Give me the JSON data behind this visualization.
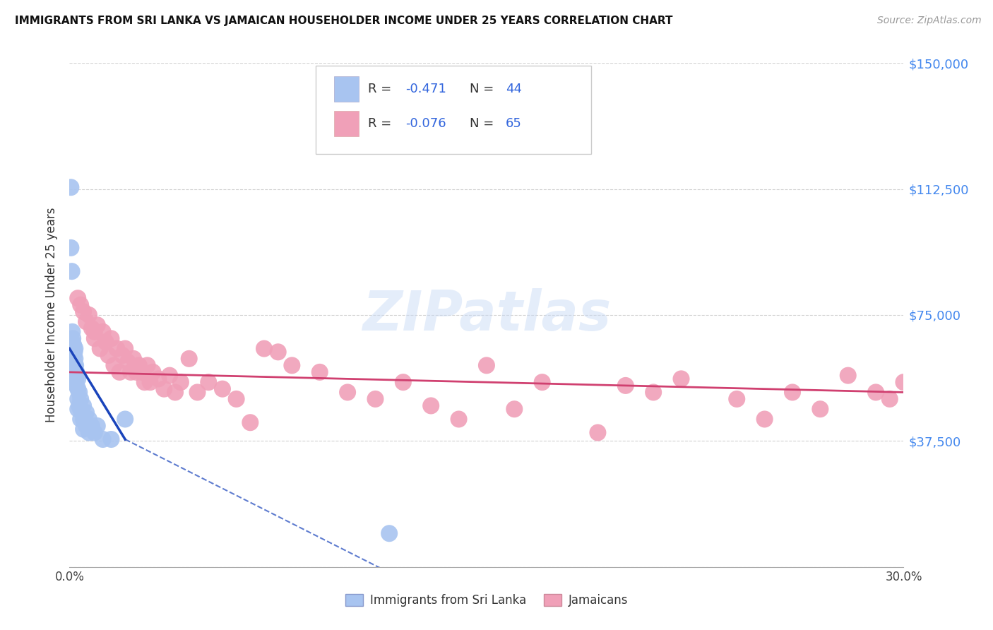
{
  "title": "IMMIGRANTS FROM SRI LANKA VS JAMAICAN HOUSEHOLDER INCOME UNDER 25 YEARS CORRELATION CHART",
  "source": "Source: ZipAtlas.com",
  "ylabel": "Householder Income Under 25 years",
  "xlim": [
    0,
    0.3
  ],
  "ylim": [
    0,
    150000
  ],
  "xticks": [
    0.0,
    0.05,
    0.1,
    0.15,
    0.2,
    0.25,
    0.3
  ],
  "xticklabels": [
    "0.0%",
    "",
    "",
    "",
    "",
    "",
    "30.0%"
  ],
  "ytick_values": [
    0,
    37500,
    75000,
    112500,
    150000
  ],
  "ytick_labels": [
    "",
    "$37,500",
    "$75,000",
    "$112,500",
    "$150,000"
  ],
  "sri_lanka_color": "#a8c4f0",
  "jamaican_color": "#f0a0b8",
  "sri_lanka_line_color": "#1a44bb",
  "jamaican_line_color": "#d04070",
  "watermark": "ZIPatlas",
  "sri_lanka_x": [
    0.0005,
    0.0005,
    0.0008,
    0.001,
    0.001,
    0.001,
    0.0012,
    0.0012,
    0.0015,
    0.0015,
    0.0015,
    0.0018,
    0.0018,
    0.002,
    0.002,
    0.002,
    0.002,
    0.0022,
    0.0022,
    0.0025,
    0.0025,
    0.003,
    0.003,
    0.003,
    0.003,
    0.0035,
    0.0035,
    0.004,
    0.004,
    0.004,
    0.005,
    0.005,
    0.005,
    0.006,
    0.006,
    0.007,
    0.007,
    0.008,
    0.009,
    0.01,
    0.012,
    0.015,
    0.02,
    0.115
  ],
  "sri_lanka_y": [
    113000,
    95000,
    88000,
    70000,
    67000,
    63000,
    68000,
    62000,
    66000,
    63000,
    58000,
    64000,
    60000,
    65000,
    62000,
    58000,
    55000,
    60000,
    56000,
    58000,
    54000,
    56000,
    53000,
    50000,
    47000,
    52000,
    48000,
    50000,
    47000,
    44000,
    48000,
    44000,
    41000,
    46000,
    42000,
    44000,
    40000,
    42000,
    40000,
    42000,
    38000,
    38000,
    44000,
    10000
  ],
  "jamaican_x": [
    0.003,
    0.004,
    0.005,
    0.006,
    0.007,
    0.008,
    0.009,
    0.009,
    0.01,
    0.011,
    0.012,
    0.013,
    0.014,
    0.015,
    0.016,
    0.017,
    0.018,
    0.019,
    0.02,
    0.021,
    0.022,
    0.023,
    0.024,
    0.025,
    0.026,
    0.027,
    0.028,
    0.029,
    0.03,
    0.032,
    0.034,
    0.036,
    0.038,
    0.04,
    0.043,
    0.046,
    0.05,
    0.055,
    0.06,
    0.065,
    0.07,
    0.075,
    0.08,
    0.09,
    0.1,
    0.11,
    0.12,
    0.13,
    0.14,
    0.15,
    0.16,
    0.17,
    0.19,
    0.2,
    0.21,
    0.22,
    0.24,
    0.25,
    0.26,
    0.27,
    0.28,
    0.29,
    0.295,
    0.3,
    0.305
  ],
  "jamaican_y": [
    80000,
    78000,
    76000,
    73000,
    75000,
    71000,
    70000,
    68000,
    72000,
    65000,
    70000,
    67000,
    63000,
    68000,
    60000,
    65000,
    58000,
    63000,
    65000,
    61000,
    58000,
    62000,
    58000,
    60000,
    58000,
    55000,
    60000,
    55000,
    58000,
    56000,
    53000,
    57000,
    52000,
    55000,
    62000,
    52000,
    55000,
    53000,
    50000,
    43000,
    65000,
    64000,
    60000,
    58000,
    52000,
    50000,
    55000,
    48000,
    44000,
    60000,
    47000,
    55000,
    40000,
    54000,
    52000,
    56000,
    50000,
    44000,
    52000,
    47000,
    57000,
    52000,
    50000,
    55000,
    50000
  ]
}
